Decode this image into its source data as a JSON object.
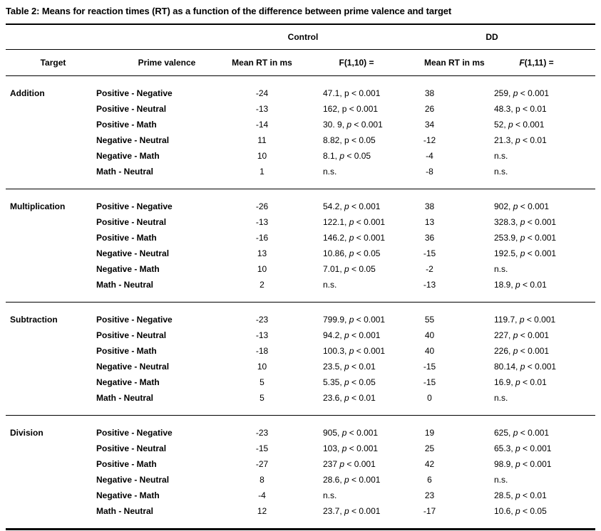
{
  "title": "Table 2: Means for reaction times (RT) as a function of the difference between prime valence and target",
  "colors": {
    "text": "#000000",
    "background": "#ffffff",
    "rule": "#000000"
  },
  "table": {
    "span_headers": {
      "control": "Control",
      "dd": "DD"
    },
    "columns": {
      "target": "Target",
      "prime_valence": "Prime valence",
      "control_rt": "Mean RT in ms",
      "control_f": "F(1,10) =",
      "dd_rt": "Mean RT in ms",
      "dd_f_prefix": "F",
      "dd_f_rest": "(1,11) ="
    },
    "groups": [
      {
        "target": "Addition",
        "rows": [
          {
            "prime": "Positive - Negative",
            "control_rt": "-24",
            "control_f": {
              "text": "47.1, p < 0.001",
              "italic_p": false
            },
            "dd_rt": "38",
            "dd_f": {
              "text": "259, p < 0.001",
              "italic_p": true
            }
          },
          {
            "prime": "Positive - Neutral",
            "control_rt": "-13",
            "control_f": {
              "text": "162, p < 0.001",
              "italic_p": false
            },
            "dd_rt": "26",
            "dd_f": {
              "text": "48.3, p < 0.01",
              "italic_p": false
            }
          },
          {
            "prime": "Positive - Math",
            "control_rt": "-14",
            "control_f": {
              "text": "30. 9, p < 0.001",
              "italic_p": true
            },
            "dd_rt": "34",
            "dd_f": {
              "text": "52, p < 0.001",
              "italic_p": true
            }
          },
          {
            "prime": "Negative - Neutral",
            "control_rt": "11",
            "control_f": {
              "text": "8.82, p < 0.05",
              "italic_p": false
            },
            "dd_rt": "-12",
            "dd_f": {
              "text": "21.3, p < 0.01",
              "italic_p": true
            }
          },
          {
            "prime": "Negative - Math",
            "control_rt": "10",
            "control_f": {
              "text": "8.1, p < 0.05",
              "italic_p": true
            },
            "dd_rt": "-4",
            "dd_f": {
              "text": "n.s.",
              "italic_p": false
            }
          },
          {
            "prime": "Math - Neutral",
            "control_rt": "1",
            "control_f": {
              "text": "n.s.",
              "italic_p": false
            },
            "dd_rt": "-8",
            "dd_f": {
              "text": "n.s.",
              "italic_p": false
            }
          }
        ]
      },
      {
        "target": "Multiplication",
        "rows": [
          {
            "prime": "Positive - Negative",
            "control_rt": "-26",
            "control_f": {
              "text": "54.2, p < 0.001",
              "italic_p": true
            },
            "dd_rt": "38",
            "dd_f": {
              "text": "902, p < 0.001",
              "italic_p": true
            }
          },
          {
            "prime": "Positive - Neutral",
            "control_rt": "-13",
            "control_f": {
              "text": "122.1, p < 0.001",
              "italic_p": true
            },
            "dd_rt": "13",
            "dd_f": {
              "text": "328.3, p < 0.001",
              "italic_p": true
            }
          },
          {
            "prime": "Positive - Math",
            "control_rt": "-16",
            "control_f": {
              "text": "146.2, p < 0.001",
              "italic_p": true
            },
            "dd_rt": "36",
            "dd_f": {
              "text": "253.9, p < 0.001",
              "italic_p": true
            }
          },
          {
            "prime": "Negative - Neutral",
            "control_rt": "13",
            "control_f": {
              "text": "10.86, p < 0.05",
              "italic_p": true
            },
            "dd_rt": "-15",
            "dd_f": {
              "text": "192.5, p < 0.001",
              "italic_p": true
            }
          },
          {
            "prime": "Negative - Math",
            "control_rt": "10",
            "control_f": {
              "text": "7.01, p < 0.05",
              "italic_p": true
            },
            "dd_rt": "-2",
            "dd_f": {
              "text": "n.s.",
              "italic_p": false
            }
          },
          {
            "prime": "Math - Neutral",
            "control_rt": "2",
            "control_f": {
              "text": "n.s.",
              "italic_p": false
            },
            "dd_rt": "-13",
            "dd_f": {
              "text": "18.9, p < 0.01",
              "italic_p": true
            }
          }
        ]
      },
      {
        "target": "Subtraction",
        "rows": [
          {
            "prime": "Positive - Negative",
            "control_rt": "-23",
            "control_f": {
              "text": "799.9, p < 0.001",
              "italic_p": true
            },
            "dd_rt": "55",
            "dd_f": {
              "text": "119.7, p < 0.001",
              "italic_p": true
            }
          },
          {
            "prime": "Positive - Neutral",
            "control_rt": "-13",
            "control_f": {
              "text": "94.2, p < 0.001",
              "italic_p": true
            },
            "dd_rt": "40",
            "dd_f": {
              "text": "227, p < 0.001",
              "italic_p": true
            }
          },
          {
            "prime": "Positive - Math",
            "control_rt": "-18",
            "control_f": {
              "text": "100.3, p < 0.001",
              "italic_p": true
            },
            "dd_rt": "40",
            "dd_f": {
              "text": "226, p < 0.001",
              "italic_p": true
            }
          },
          {
            "prime": "Negative - Neutral",
            "control_rt": "10",
            "control_f": {
              "text": "23.5, p < 0.01",
              "italic_p": true
            },
            "dd_rt": "-15",
            "dd_f": {
              "text": "80.14, p < 0.001",
              "italic_p": true
            }
          },
          {
            "prime": "Negative - Math",
            "control_rt": "5",
            "control_f": {
              "text": "5.35, p < 0.05",
              "italic_p": true
            },
            "dd_rt": "-15",
            "dd_f": {
              "text": "16.9, p < 0.01",
              "italic_p": true
            }
          },
          {
            "prime": "Math - Neutral",
            "control_rt": "5",
            "control_f": {
              "text": "23.6, p < 0.01",
              "italic_p": true
            },
            "dd_rt": "0",
            "dd_f": {
              "text": "n.s.",
              "italic_p": false
            }
          }
        ]
      },
      {
        "target": "Division",
        "rows": [
          {
            "prime": "Positive - Negative",
            "control_rt": "-23",
            "control_f": {
              "text": "905, p < 0.001",
              "italic_p": true
            },
            "dd_rt": "19",
            "dd_f": {
              "text": "625, p < 0.001",
              "italic_p": true
            }
          },
          {
            "prime": "Positive - Neutral",
            "control_rt": "-15",
            "control_f": {
              "text": "103, p < 0.001",
              "italic_p": true
            },
            "dd_rt": "25",
            "dd_f": {
              "text": "65.3, p < 0.001",
              "italic_p": true
            }
          },
          {
            "prime": "Positive - Math",
            "control_rt": "-27",
            "control_f": {
              "text": "237 p < 0.001",
              "italic_p": true
            },
            "dd_rt": "42",
            "dd_f": {
              "text": "98.9, p < 0.001",
              "italic_p": true
            }
          },
          {
            "prime": "Negative - Neutral",
            "control_rt": "8",
            "control_f": {
              "text": "28.6, p < 0.001",
              "italic_p": true
            },
            "dd_rt": "6",
            "dd_f": {
              "text": "n.s.",
              "italic_p": false
            }
          },
          {
            "prime": "Negative - Math",
            "control_rt": "-4",
            "control_f": {
              "text": "n.s.",
              "italic_p": false
            },
            "dd_rt": "23",
            "dd_f": {
              "text": "28.5, p < 0.01",
              "italic_p": true
            }
          },
          {
            "prime": "Math - Neutral",
            "control_rt": "12",
            "control_f": {
              "text": "23.7, p < 0.001",
              "italic_p": true
            },
            "dd_rt": "-17",
            "dd_f": {
              "text": "10.6, p < 0.05",
              "italic_p": true
            }
          }
        ]
      }
    ]
  }
}
